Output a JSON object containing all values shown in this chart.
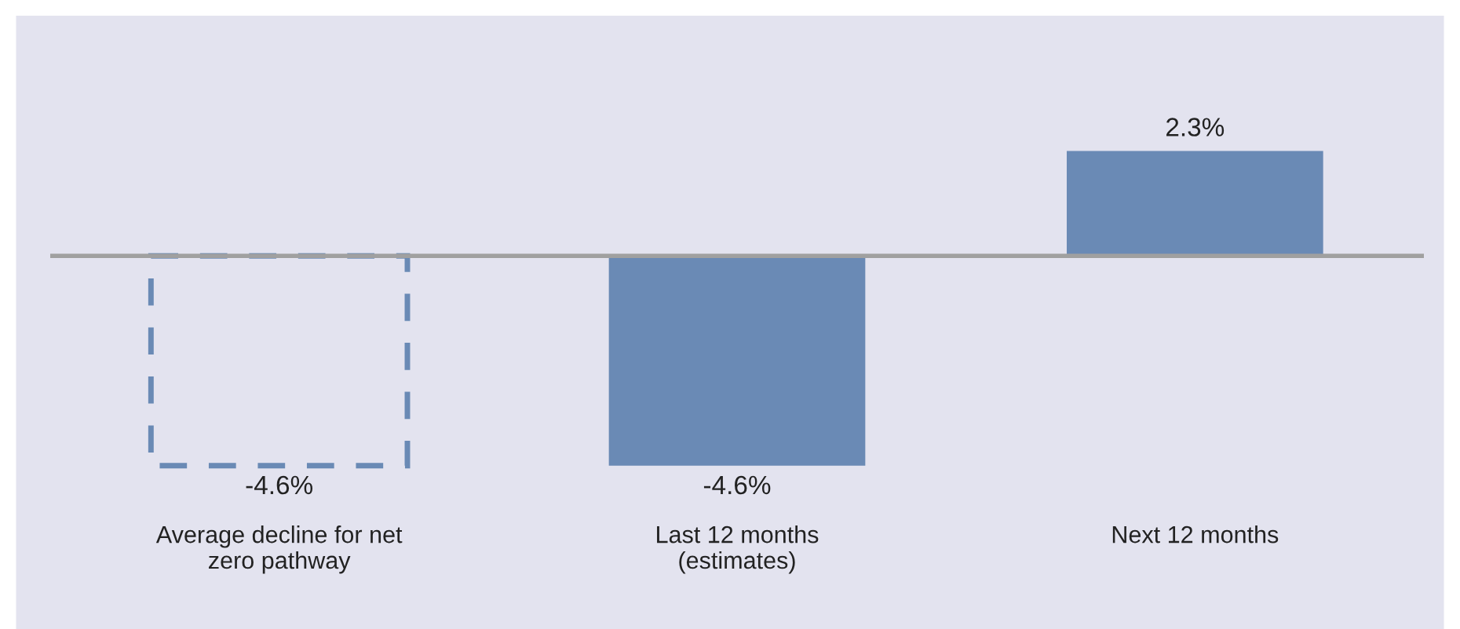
{
  "chart_data": {
    "type": "bar",
    "categories": [
      "Average decline for net\nzero pathway",
      "Last 12 months\n(estimates)",
      "Next 12 months"
    ],
    "series": [
      {
        "color": "#6a8ab5",
        "line_style": "dashed",
        "values": [
          -4.6,
          null,
          null
        ],
        "value_labels": [
          "-4.6%",
          null,
          null
        ]
      },
      {
        "color": "#6a8ab5",
        "values": [
          null,
          -4.6,
          2.3
        ],
        "value_labels": [
          null,
          "-4.6%",
          "2.3%"
        ]
      }
    ],
    "grid": false,
    "legend": false
  }
}
